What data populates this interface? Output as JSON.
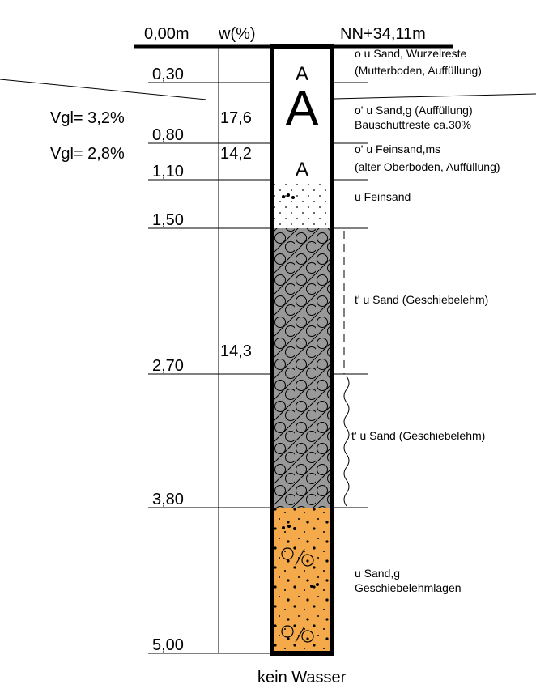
{
  "header": {
    "depth_top": "0,00m",
    "w_label": "w(%)",
    "elevation": "NN+34,11m"
  },
  "depths": [
    "0,30",
    "0,80",
    "1,10",
    "1,50",
    "2,70",
    "3,80",
    "5,00"
  ],
  "w_values": [
    "17,6",
    "14,2",
    "14,3"
  ],
  "vgl": [
    "Vgl= 3,2%",
    "Vgl= 2,8%"
  ],
  "symbols": [
    "A",
    "A",
    "A"
  ],
  "descriptions": [
    [
      "o u Sand, Wurzelreste",
      "(Mutterboden, Auffüllung)"
    ],
    [
      "o' u Sand,g (Auffüllung)",
      "Bauschuttreste ca.30%"
    ],
    [
      "o' u Feinsand,ms",
      "(alter Oberboden, Auffüllung)"
    ],
    [
      "u Feinsand"
    ],
    [
      "t' u Sand (Geschiebelehm)"
    ],
    [
      "t' u Sand (Geschiebelehm)"
    ],
    [
      "u Sand,g",
      "Geschiebelehmlagen"
    ]
  ],
  "footer": "kein Wasser"
}
